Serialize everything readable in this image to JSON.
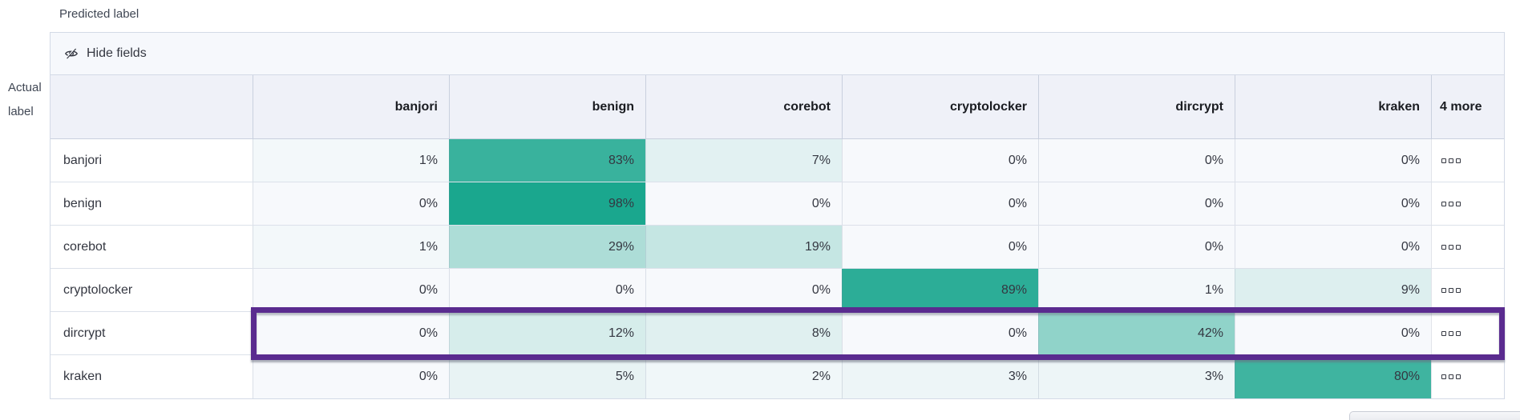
{
  "axes": {
    "predicted_label": "Predicted label",
    "actual_label": "Actual label"
  },
  "toolbar": {
    "hide_fields_label": "Hide fields",
    "hide_fields_icon": "eye-slash-icon"
  },
  "grid": {
    "columns": [
      "banjori",
      "benign",
      "corebot",
      "cryptolocker",
      "dircrypt",
      "kraken"
    ],
    "more_column_label": "4 more",
    "value_suffix": "%",
    "rows": [
      {
        "label": "banjori",
        "values": [
          1,
          83,
          7,
          0,
          0,
          0
        ],
        "highlighted": false
      },
      {
        "label": "benign",
        "values": [
          0,
          98,
          0,
          0,
          0,
          0
        ],
        "highlighted": false
      },
      {
        "label": "corebot",
        "values": [
          1,
          29,
          19,
          0,
          0,
          0
        ],
        "highlighted": false
      },
      {
        "label": "cryptolocker",
        "values": [
          0,
          0,
          0,
          89,
          1,
          9
        ],
        "highlighted": false
      },
      {
        "label": "dircrypt",
        "values": [
          0,
          12,
          8,
          0,
          42,
          0
        ],
        "highlighted": true
      },
      {
        "label": "kraken",
        "values": [
          0,
          5,
          2,
          3,
          3,
          80
        ],
        "highlighted": false
      }
    ],
    "more_cell_icon": "boxes-horizontal-icon"
  },
  "colors": {
    "heat_zero": "#F7F9FC",
    "heat_max": "#16A58C",
    "highlight_border": "#5A2B8F",
    "header_bg": "#EFF1F8",
    "toolbar_bg": "#F6F8FC",
    "table_border": "#D3DAE6",
    "text": "#343741"
  }
}
